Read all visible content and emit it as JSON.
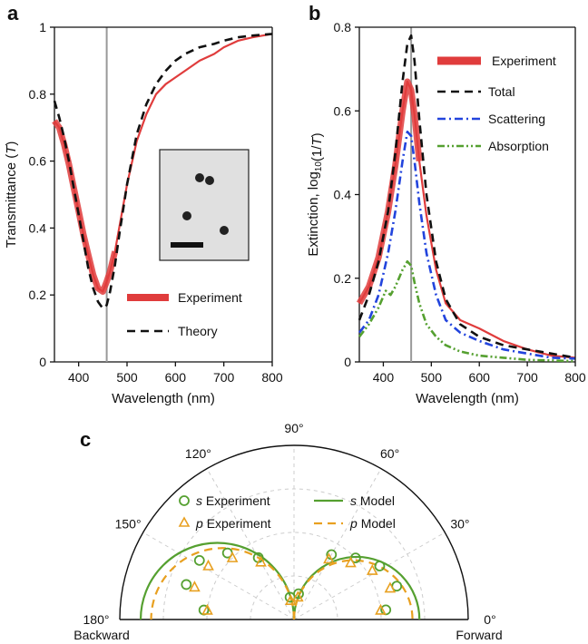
{
  "panels": {
    "a": "a",
    "b": "b",
    "c": "c"
  },
  "chart_data": [
    {
      "id": "a",
      "type": "line",
      "xlabel": "Wavelength (nm)",
      "ylabel_main": "Transmittance (",
      "ylabel_var": "T",
      "ylabel_end": ")",
      "xlim": [
        350,
        800
      ],
      "ylim": [
        0,
        1
      ],
      "xticks": [
        400,
        500,
        600,
        700,
        800
      ],
      "yticks": [
        0,
        0.2,
        0.4,
        0.6,
        0.8,
        1
      ],
      "ytick_labels": [
        "0",
        "0.2",
        "0.4",
        "0.6",
        "0.8",
        "1"
      ],
      "vline_x": 458,
      "legend_position": "lower-right",
      "inset": "microscopy image of nanoparticles with scale bar",
      "series": [
        {
          "name": "Experiment",
          "color": "#e03c3c",
          "style": "band",
          "x": [
            350,
            360,
            370,
            380,
            390,
            400,
            410,
            420,
            430,
            440,
            450,
            458,
            465,
            475,
            485,
            500,
            520,
            540,
            560,
            580,
            600,
            620,
            650,
            680,
            700,
            730,
            760,
            800
          ],
          "values": [
            0.72,
            0.7,
            0.65,
            0.59,
            0.52,
            0.45,
            0.38,
            0.32,
            0.26,
            0.22,
            0.21,
            0.24,
            0.27,
            0.33,
            0.41,
            0.53,
            0.66,
            0.74,
            0.8,
            0.83,
            0.85,
            0.87,
            0.9,
            0.92,
            0.94,
            0.96,
            0.97,
            0.98
          ]
        },
        {
          "name": "Theory",
          "color": "#111111",
          "style": "dashed",
          "x": [
            350,
            360,
            370,
            380,
            390,
            400,
            410,
            420,
            430,
            440,
            450,
            458,
            465,
            475,
            485,
            500,
            520,
            540,
            560,
            580,
            600,
            620,
            650,
            680,
            700,
            730,
            760,
            800
          ],
          "values": [
            0.78,
            0.73,
            0.67,
            0.6,
            0.52,
            0.44,
            0.36,
            0.28,
            0.22,
            0.18,
            0.16,
            0.17,
            0.21,
            0.29,
            0.39,
            0.53,
            0.68,
            0.77,
            0.83,
            0.87,
            0.9,
            0.92,
            0.94,
            0.95,
            0.96,
            0.97,
            0.975,
            0.98
          ]
        }
      ]
    },
    {
      "id": "b",
      "type": "line",
      "xlabel": "Wavelength (nm)",
      "ylabel_main": "Extinction, log",
      "ylabel_sub": "10",
      "ylabel_end": "(1/",
      "ylabel_var": "T",
      "ylabel_close": ")",
      "xlim": [
        350,
        800
      ],
      "ylim": [
        0,
        0.8
      ],
      "xticks": [
        400,
        500,
        600,
        700,
        800
      ],
      "yticks": [
        0,
        0.2,
        0.4,
        0.6,
        0.8
      ],
      "ytick_labels": [
        "0",
        "0.2",
        "0.4",
        "0.6",
        "0.8"
      ],
      "vline_x": 458,
      "legend_position": "top-right",
      "series": [
        {
          "name": "Experiment",
          "color": "#e03c3c",
          "style": "band",
          "x": [
            350,
            370,
            390,
            410,
            425,
            440,
            450,
            458,
            465,
            475,
            490,
            510,
            530,
            560,
            600,
            650,
            700,
            750,
            800
          ],
          "values": [
            0.14,
            0.18,
            0.25,
            0.36,
            0.47,
            0.6,
            0.67,
            0.65,
            0.59,
            0.48,
            0.35,
            0.22,
            0.14,
            0.1,
            0.08,
            0.05,
            0.03,
            0.015,
            0.01
          ]
        },
        {
          "name": "Total",
          "color": "#111111",
          "style": "dashed",
          "x": [
            350,
            370,
            390,
            410,
            425,
            440,
            450,
            458,
            465,
            475,
            490,
            510,
            530,
            560,
            600,
            650,
            700,
            750,
            800
          ],
          "values": [
            0.1,
            0.16,
            0.24,
            0.36,
            0.5,
            0.67,
            0.76,
            0.78,
            0.72,
            0.58,
            0.4,
            0.24,
            0.15,
            0.09,
            0.06,
            0.04,
            0.03,
            0.02,
            0.01
          ]
        },
        {
          "name": "Scattering",
          "color": "#2244dd",
          "style": "dashdot",
          "x": [
            350,
            370,
            390,
            410,
            425,
            440,
            450,
            458,
            465,
            475,
            490,
            510,
            530,
            560,
            600,
            650,
            700,
            750,
            800
          ],
          "values": [
            0.07,
            0.1,
            0.16,
            0.26,
            0.36,
            0.48,
            0.55,
            0.54,
            0.48,
            0.38,
            0.26,
            0.16,
            0.1,
            0.07,
            0.05,
            0.03,
            0.02,
            0.01,
            0.008
          ]
        },
        {
          "name": "Absorption",
          "color": "#55a030",
          "style": "dashdotdot",
          "x": [
            350,
            370,
            390,
            405,
            415,
            425,
            440,
            450,
            458,
            465,
            475,
            490,
            510,
            530,
            560,
            600,
            650,
            700,
            800
          ],
          "values": [
            0.06,
            0.09,
            0.13,
            0.17,
            0.16,
            0.18,
            0.22,
            0.24,
            0.23,
            0.19,
            0.14,
            0.09,
            0.06,
            0.04,
            0.025,
            0.015,
            0.01,
            0.005,
            0.002
          ]
        }
      ]
    },
    {
      "id": "c",
      "type": "scatter",
      "projection": "polar half-circle",
      "angle_ticks_deg": [
        0,
        30,
        60,
        90,
        120,
        150,
        180
      ],
      "angle_labels": [
        "0°",
        "30°",
        "60°",
        "90°",
        "120°",
        "150°",
        "180°"
      ],
      "backward_label": "Backward",
      "forward_label": "Forward",
      "r_max": 1,
      "legend_position": "upper-center",
      "series": [
        {
          "name_italic": "s",
          "name": "Experiment",
          "color": "#55a030",
          "marker": "circle",
          "angles_deg": [
            6,
            18,
            32,
            45,
            60,
            80,
            100,
            120,
            135,
            148,
            162,
            174
          ],
          "r": [
            0.53,
            0.62,
            0.58,
            0.5,
            0.43,
            0.15,
            0.13,
            0.41,
            0.54,
            0.64,
            0.65,
            0.52
          ]
        },
        {
          "name_italic": "p",
          "name": "Experiment",
          "color": "#e8a020",
          "marker": "triangle",
          "angles_deg": [
            6,
            18,
            32,
            45,
            60,
            80,
            100,
            120,
            135,
            148,
            162,
            174
          ],
          "r": [
            0.5,
            0.58,
            0.53,
            0.46,
            0.4,
            0.13,
            0.11,
            0.38,
            0.5,
            0.58,
            0.6,
            0.5
          ]
        },
        {
          "name_italic": "s",
          "name": "Model",
          "color": "#55a030",
          "style": "solid",
          "r_back": 0.88,
          "r_fwd": 0.72
        },
        {
          "name_italic": "p",
          "name": "Model",
          "color": "#e8a020",
          "style": "dashed",
          "r_back": 0.82,
          "r_fwd": 0.68
        }
      ]
    }
  ],
  "colors": {
    "experiment": "#e03c3c",
    "vline": "#999999",
    "grid": "#cccccc"
  }
}
